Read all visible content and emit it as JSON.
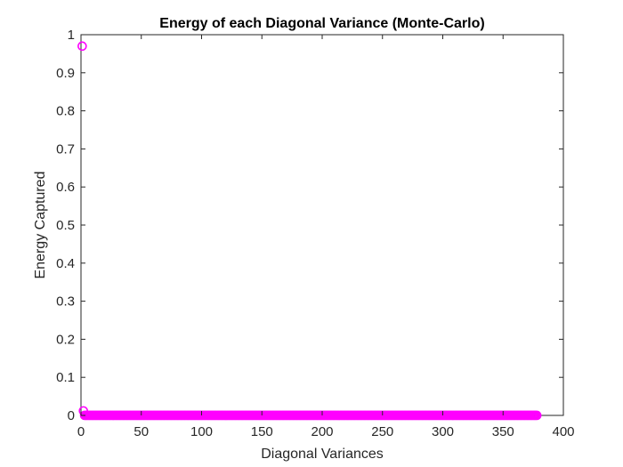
{
  "chart_data": {
    "type": "scatter",
    "title": "Energy of each Diagonal Variance (Monte-Carlo)",
    "xlabel": "Diagonal Variances",
    "ylabel": "Energy Captured",
    "xlim": [
      0,
      400
    ],
    "ylim": [
      0,
      1
    ],
    "xticks": [
      0,
      50,
      100,
      150,
      200,
      250,
      300,
      350,
      400
    ],
    "yticks": [
      0,
      0.1,
      0.2,
      0.3,
      0.4,
      0.5,
      0.6,
      0.7,
      0.8,
      0.9,
      1
    ],
    "xtick_labels": [
      "0",
      "50",
      "100",
      "150",
      "200",
      "250",
      "300",
      "350",
      "400"
    ],
    "ytick_labels": [
      "0",
      "0.1",
      "0.2",
      "0.3",
      "0.4",
      "0.5",
      "0.6",
      "0.7",
      "0.8",
      "0.9",
      "1"
    ],
    "grid": false,
    "marker": "circle-open",
    "color": "#ff00ff",
    "series": [
      {
        "x_start": 1,
        "x_end": 378,
        "highlight_points": [
          {
            "x": 1,
            "y": 0.97
          },
          {
            "x": 2,
            "y": 0.012
          }
        ],
        "tail_value": 0.0001
      }
    ]
  }
}
